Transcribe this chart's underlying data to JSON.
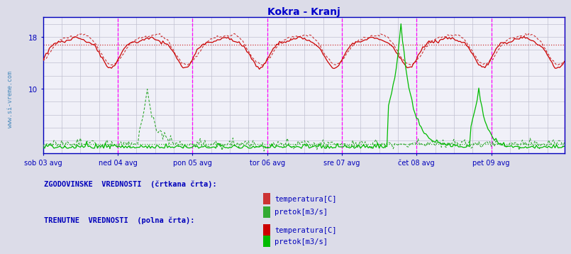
{
  "title": "Kokra - Kranj",
  "title_color": "#0000cc",
  "bg_color": "#dcdce8",
  "plot_bg_color": "#f0f0f8",
  "grid_color": "#c0c0d0",
  "axis_color": "#0000bb",
  "tick_label_color": "#0000aa",
  "sidebar_color": "#4488bb",
  "ylim": [
    0,
    21
  ],
  "yticks": [
    10,
    18
  ],
  "n_points": 336,
  "days": [
    "sob 03 avg",
    "ned 04 avg",
    "pon 05 avg",
    "tor 06 avg",
    "sre 07 avg",
    "čet 08 avg",
    "pet 09 avg"
  ],
  "day_tick_indices": [
    0,
    48,
    96,
    144,
    192,
    240,
    288
  ],
  "vline_color": "#ff00ff",
  "temp_hist_color": "#cc3333",
  "temp_curr_color": "#cc0000",
  "flow_hist_color": "#33aa33",
  "flow_curr_color": "#00bb00",
  "avg_temp_value": 16.8,
  "avg_flow_value": 1.5,
  "sidebar_text": "www.si-vreme.com",
  "legend_hist_label1": "temperatura[C]",
  "legend_hist_label2": "pretok[m3/s]",
  "legend_curr_label1": "temperatura[C]",
  "legend_curr_label2": "pretok[m3/s]",
  "label_hist": "ZGODOVINSKE  VREDNOSTI  (črtkana črta):",
  "label_curr": "TRENUTNE  VREDNOSTI  (polna črta):"
}
